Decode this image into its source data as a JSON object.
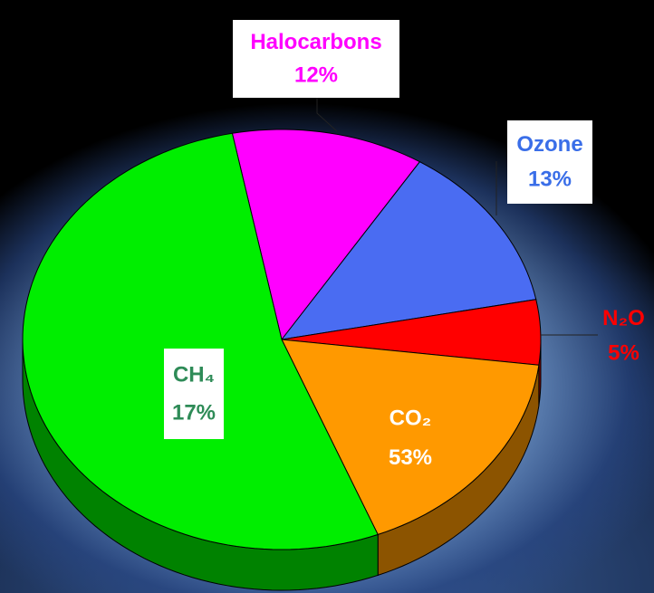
{
  "chart_data": {
    "type": "pie",
    "categories": [
      "Halocarbons",
      "Ozone",
      "N₂O",
      "CH₄",
      "CO₂"
    ],
    "values": [
      12,
      13,
      5,
      17,
      53
    ],
    "value_labels": [
      "12%",
      "13%",
      "5%",
      "17%",
      "53%"
    ],
    "colors": [
      "#ff00ff",
      "#4a6cf2",
      "#ff0000",
      "#ff9900",
      "#00ee00"
    ]
  }
}
